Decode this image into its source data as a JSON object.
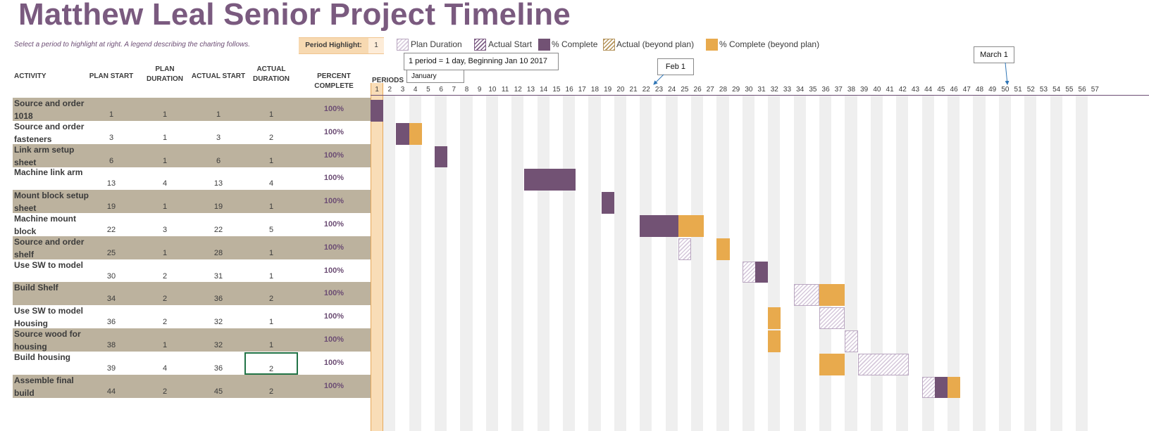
{
  "title": "Matthew Leal Senior Project Timeline",
  "subtitle": "Select a period to highlight at right.  A legend describing the charting follows.",
  "period_highlight": {
    "label": "Period Highlight:",
    "value": "1"
  },
  "legend": [
    {
      "label": "Plan Duration",
      "style": "plan"
    },
    {
      "label": "Actual Start",
      "style": "hatch-actual"
    },
    {
      "label": "% Complete",
      "style": "solid-complete"
    },
    {
      "label": "Actual (beyond plan)",
      "style": "hatch-beyond"
    },
    {
      "label": "% Complete (beyond plan)",
      "style": "solid-beyond"
    }
  ],
  "callouts": {
    "period_note": "1 period = 1 day, Beginning Jan 10 2017",
    "month_cell": "January",
    "feb": "Feb 1",
    "march": "March 1"
  },
  "headers": {
    "activity": "ACTIVITY",
    "plan_start": "PLAN START",
    "plan_duration": "PLAN DURATION",
    "actual_start": "ACTUAL START",
    "actual_duration": "ACTUAL DURATION",
    "percent_complete": "PERCENT COMPLETE",
    "periods": "PERIODS"
  },
  "highlight_period": 1,
  "period_count": 57,
  "colors": {
    "title": "#7a5a7f",
    "complete": "#725274",
    "beyond": "#e8aa4d",
    "row_shade": "#bcb29e",
    "highlight_col": "#f9ddb7"
  },
  "tasks": [
    {
      "name": "Source and order 1018",
      "plan_start": "1",
      "plan_duration": "1",
      "actual_start": "1",
      "actual_duration": "1",
      "percent": "100%"
    },
    {
      "name": "Source and order fasteners",
      "plan_start": "3",
      "plan_duration": "1",
      "actual_start": "3",
      "actual_duration": "2",
      "percent": "100%"
    },
    {
      "name": "Link arm setup sheet",
      "plan_start": "6",
      "plan_duration": "1",
      "actual_start": "6",
      "actual_duration": "1",
      "percent": "100%"
    },
    {
      "name": "Machine link arm",
      "plan_start": "13",
      "plan_duration": "4",
      "actual_start": "13",
      "actual_duration": "4",
      "percent": "100%"
    },
    {
      "name": "Mount block setup sheet",
      "plan_start": "19",
      "plan_duration": "1",
      "actual_start": "19",
      "actual_duration": "1",
      "percent": "100%"
    },
    {
      "name": "Machine mount block",
      "plan_start": "22",
      "plan_duration": "3",
      "actual_start": "22",
      "actual_duration": "5",
      "percent": "100%"
    },
    {
      "name": "Source and order shelf",
      "plan_start": "25",
      "plan_duration": "1",
      "actual_start": "28",
      "actual_duration": "1",
      "percent": "100%"
    },
    {
      "name": "Use SW to model",
      "plan_start": "30",
      "plan_duration": "2",
      "actual_start": "31",
      "actual_duration": "1",
      "percent": "100%"
    },
    {
      "name": "Build Shelf",
      "plan_start": "34",
      "plan_duration": "2",
      "actual_start": "36",
      "actual_duration": "2",
      "percent": "100%"
    },
    {
      "name": "Use SW to model Housing",
      "plan_start": "36",
      "plan_duration": "2",
      "actual_start": "32",
      "actual_duration": "1",
      "percent": "100%"
    },
    {
      "name": "Source wood for housing",
      "plan_start": "38",
      "plan_duration": "1",
      "actual_start": "32",
      "actual_duration": "1",
      "percent": "100%"
    },
    {
      "name": "Build housing",
      "plan_start": "39",
      "plan_duration": "4",
      "actual_start": "36",
      "actual_duration": "2",
      "percent": "100%"
    },
    {
      "name": "Assemble final build",
      "plan_start": "44",
      "plan_duration": "2",
      "actual_start": "45",
      "actual_duration": "2",
      "percent": "100%"
    }
  ]
}
